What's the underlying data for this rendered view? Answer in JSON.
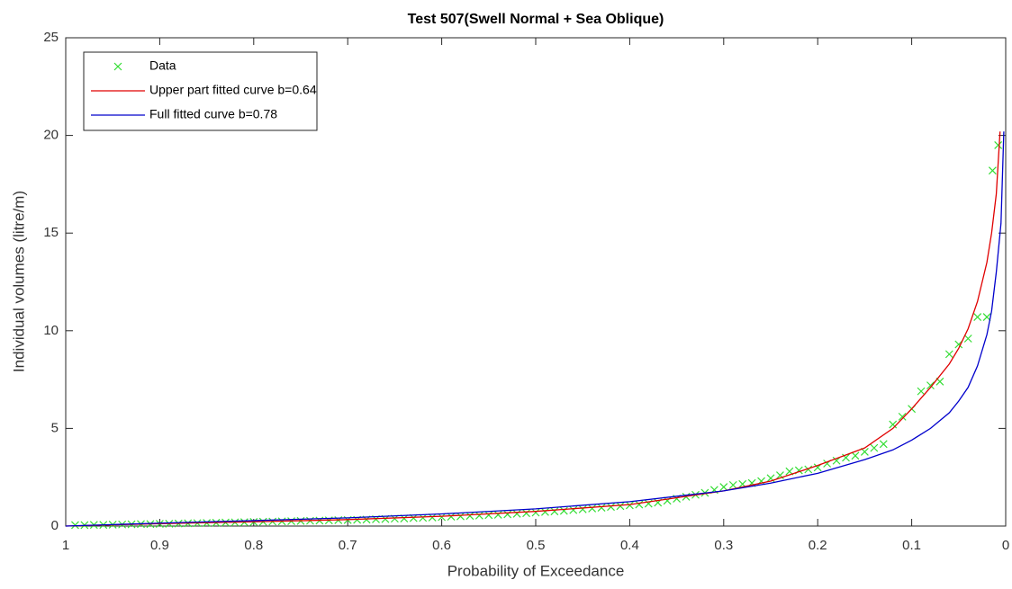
{
  "chart_data": {
    "type": "line",
    "title": "Test 507(Swell Normal + Sea Oblique)",
    "xlabel": "Probability of Exceedance",
    "ylabel": "Individual volumes (litre/m)",
    "xlim": [
      1,
      0
    ],
    "ylim": [
      0,
      25
    ],
    "xticks": [
      1,
      0.9,
      0.8,
      0.7,
      0.6,
      0.5,
      0.4,
      0.3,
      0.2,
      0.1,
      0
    ],
    "yticks": [
      0,
      5,
      10,
      15,
      20,
      25
    ],
    "grid": false,
    "legend": "northwest",
    "series": [
      {
        "name": "Data",
        "color": "#33dd33",
        "style": "markers",
        "x": [
          0.99,
          0.98,
          0.97,
          0.96,
          0.95,
          0.94,
          0.93,
          0.92,
          0.91,
          0.9,
          0.89,
          0.88,
          0.87,
          0.86,
          0.85,
          0.84,
          0.83,
          0.82,
          0.81,
          0.8,
          0.79,
          0.78,
          0.77,
          0.76,
          0.75,
          0.74,
          0.73,
          0.72,
          0.71,
          0.7,
          0.69,
          0.68,
          0.67,
          0.66,
          0.65,
          0.64,
          0.63,
          0.62,
          0.61,
          0.6,
          0.59,
          0.58,
          0.57,
          0.56,
          0.55,
          0.54,
          0.53,
          0.52,
          0.51,
          0.5,
          0.49,
          0.48,
          0.47,
          0.46,
          0.45,
          0.44,
          0.43,
          0.42,
          0.41,
          0.4,
          0.39,
          0.38,
          0.37,
          0.36,
          0.35,
          0.34,
          0.33,
          0.32,
          0.31,
          0.3,
          0.29,
          0.28,
          0.27,
          0.26,
          0.25,
          0.24,
          0.23,
          0.22,
          0.21,
          0.2,
          0.19,
          0.18,
          0.17,
          0.16,
          0.15,
          0.14,
          0.13,
          0.12,
          0.11,
          0.1,
          0.09,
          0.08,
          0.07,
          0.06,
          0.05,
          0.04,
          0.03,
          0.02,
          0.014,
          0.008
        ],
        "values": [
          0.05,
          0.05,
          0.06,
          0.06,
          0.07,
          0.08,
          0.09,
          0.1,
          0.1,
          0.11,
          0.12,
          0.13,
          0.14,
          0.15,
          0.16,
          0.17,
          0.18,
          0.19,
          0.2,
          0.21,
          0.22,
          0.23,
          0.24,
          0.25,
          0.26,
          0.27,
          0.28,
          0.29,
          0.3,
          0.31,
          0.32,
          0.33,
          0.35,
          0.36,
          0.38,
          0.39,
          0.41,
          0.42,
          0.44,
          0.46,
          0.48,
          0.5,
          0.52,
          0.54,
          0.56,
          0.58,
          0.6,
          0.63,
          0.66,
          0.69,
          0.72,
          0.75,
          0.78,
          0.82,
          0.86,
          0.9,
          0.94,
          0.98,
          1.02,
          1.06,
          1.1,
          1.15,
          1.2,
          1.3,
          1.4,
          1.5,
          1.6,
          1.7,
          1.85,
          2.0,
          2.1,
          2.15,
          2.2,
          2.3,
          2.45,
          2.6,
          2.8,
          2.85,
          2.9,
          3.0,
          3.2,
          3.35,
          3.5,
          3.6,
          3.8,
          4.0,
          4.2,
          5.2,
          5.6,
          6.0,
          6.9,
          7.2,
          7.4,
          8.8,
          9.3,
          9.6,
          10.7,
          10.7,
          18.2,
          19.5
        ]
      },
      {
        "name": "Upper part fitted curve b=0.64",
        "color": "#e00000",
        "style": "line",
        "x": [
          1,
          0.9,
          0.8,
          0.7,
          0.6,
          0.5,
          0.4,
          0.3,
          0.25,
          0.2,
          0.15,
          0.12,
          0.1,
          0.08,
          0.06,
          0.05,
          0.04,
          0.03,
          0.02,
          0.015,
          0.01,
          0.006
        ],
        "values": [
          0,
          0.12,
          0.22,
          0.33,
          0.5,
          0.75,
          1.1,
          1.8,
          2.3,
          3.1,
          4.0,
          5.0,
          6.0,
          7.1,
          8.3,
          9.1,
          10.1,
          11.5,
          13.5,
          15,
          17,
          20.2
        ]
      },
      {
        "name": "Full fitted curve b=0.78",
        "color": "#0000cc",
        "style": "line",
        "x": [
          1,
          0.9,
          0.8,
          0.7,
          0.6,
          0.5,
          0.4,
          0.3,
          0.25,
          0.2,
          0.15,
          0.12,
          0.1,
          0.08,
          0.06,
          0.05,
          0.04,
          0.03,
          0.02,
          0.015,
          0.01,
          0.005,
          0.002
        ],
        "values": [
          0,
          0.15,
          0.28,
          0.42,
          0.62,
          0.88,
          1.25,
          1.8,
          2.2,
          2.7,
          3.4,
          3.9,
          4.4,
          5.0,
          5.8,
          6.4,
          7.1,
          8.2,
          9.8,
          11.0,
          13.0,
          15.5,
          20.2
        ]
      }
    ]
  }
}
